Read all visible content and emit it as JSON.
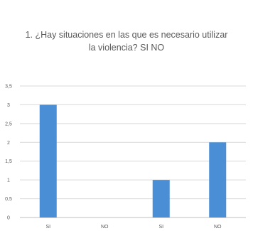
{
  "chart_data": {
    "type": "bar",
    "title_lines": [
      "1. ¿Hay situaciones en las que es necesario utilizar",
      "la violencia? SI NO"
    ],
    "categories": [
      "SI",
      "NO",
      "SI",
      "NO"
    ],
    "values": [
      3,
      0,
      1,
      2
    ],
    "ylim": [
      0,
      3.5
    ],
    "yticks": [
      "0",
      "0,5",
      "1",
      "1,5",
      "2",
      "2,5",
      "3",
      "3,5"
    ],
    "grid": true,
    "legend": "none",
    "xlabel": "",
    "ylabel": "",
    "bar_color": "#4a8fd6",
    "grid_color": "#d9d9d9",
    "text_color": "#595959"
  }
}
